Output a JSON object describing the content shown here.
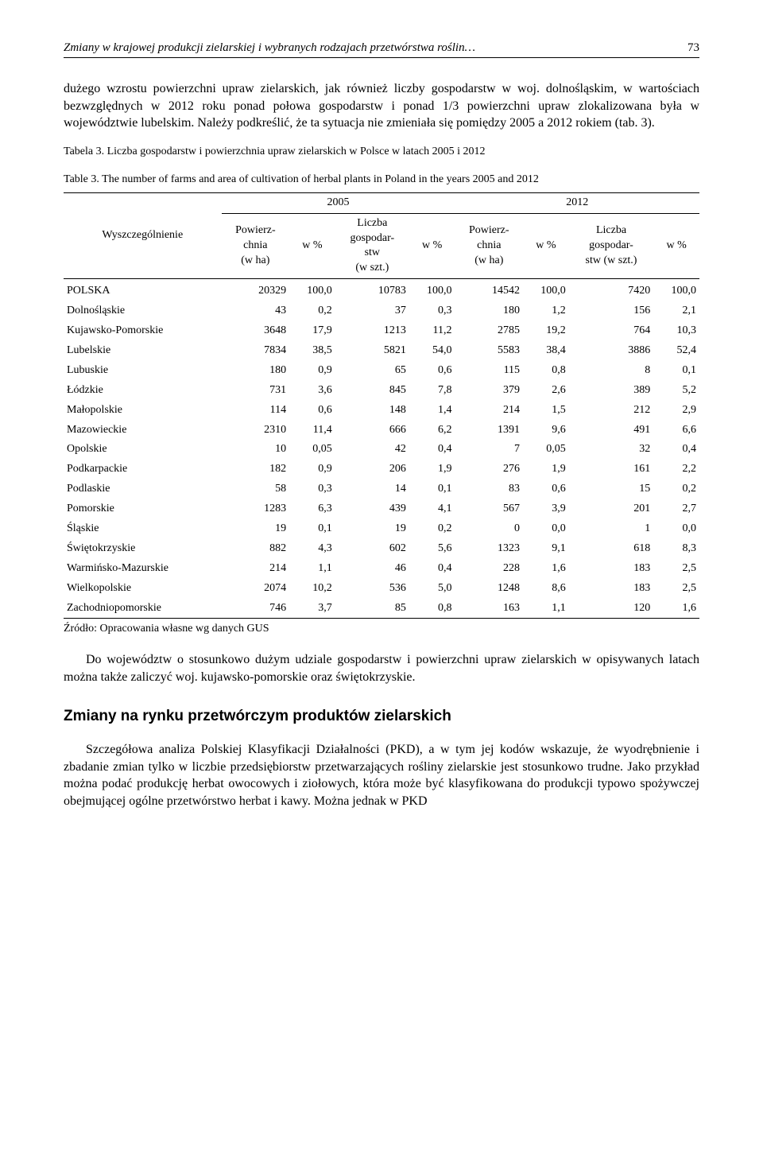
{
  "header": {
    "running_title": "Zmiany w krajowej produkcji zielarskiej i wybranych rodzajach przetwórstwa roślin…",
    "page_number": "73"
  },
  "para_top": "dużego wzrostu powierzchni upraw zielarskich, jak również liczby gospodarstw w woj. dolnośląskim, w wartościach bezwzględnych w 2012 roku ponad połowa gospodarstw i ponad 1/3 powierzchni upraw zlokalizowana była w województwie lubelskim. Należy podkreślić, że ta sytuacja nie zmieniała się pomiędzy 2005 a 2012 rokiem (tab. 3).",
  "table_caption_pl": "Tabela 3. Liczba gospodarstw i powierzchnia upraw zielarskich w Polsce w latach 2005 i 2012",
  "table_caption_en": "Table 3. The number of farms and area of cultivation of herbal plants in Poland in the years 2005 and 2012",
  "table": {
    "col_stub": "Wyszczególnienie",
    "year_a": "2005",
    "year_b": "2012",
    "col_area": "Powierz-\nchnia\n(w ha)",
    "col_pct": "w %",
    "col_farms": "Liczba\ngospodar-\nstw\n(w szt.)",
    "col_farms_b": "Liczba\ngospodar-\nstw (w szt.)",
    "rows": [
      {
        "name": "POLSKA",
        "a_area": "20329",
        "a_area_pct": "100,0",
        "a_farm": "10783",
        "a_farm_pct": "100,0",
        "b_area": "14542",
        "b_area_pct": "100,0",
        "b_farm": "7420",
        "b_farm_pct": "100,0"
      },
      {
        "name": "Dolnośląskie",
        "a_area": "43",
        "a_area_pct": "0,2",
        "a_farm": "37",
        "a_farm_pct": "0,3",
        "b_area": "180",
        "b_area_pct": "1,2",
        "b_farm": "156",
        "b_farm_pct": "2,1"
      },
      {
        "name": "Kujawsko-Pomorskie",
        "a_area": "3648",
        "a_area_pct": "17,9",
        "a_farm": "1213",
        "a_farm_pct": "11,2",
        "b_area": "2785",
        "b_area_pct": "19,2",
        "b_farm": "764",
        "b_farm_pct": "10,3"
      },
      {
        "name": "Lubelskie",
        "a_area": "7834",
        "a_area_pct": "38,5",
        "a_farm": "5821",
        "a_farm_pct": "54,0",
        "b_area": "5583",
        "b_area_pct": "38,4",
        "b_farm": "3886",
        "b_farm_pct": "52,4"
      },
      {
        "name": "Lubuskie",
        "a_area": "180",
        "a_area_pct": "0,9",
        "a_farm": "65",
        "a_farm_pct": "0,6",
        "b_area": "115",
        "b_area_pct": "0,8",
        "b_farm": "8",
        "b_farm_pct": "0,1"
      },
      {
        "name": "Łódzkie",
        "a_area": "731",
        "a_area_pct": "3,6",
        "a_farm": "845",
        "a_farm_pct": "7,8",
        "b_area": "379",
        "b_area_pct": "2,6",
        "b_farm": "389",
        "b_farm_pct": "5,2"
      },
      {
        "name": "Małopolskie",
        "a_area": "114",
        "a_area_pct": "0,6",
        "a_farm": "148",
        "a_farm_pct": "1,4",
        "b_area": "214",
        "b_area_pct": "1,5",
        "b_farm": "212",
        "b_farm_pct": "2,9"
      },
      {
        "name": "Mazowieckie",
        "a_area": "2310",
        "a_area_pct": "11,4",
        "a_farm": "666",
        "a_farm_pct": "6,2",
        "b_area": "1391",
        "b_area_pct": "9,6",
        "b_farm": "491",
        "b_farm_pct": "6,6"
      },
      {
        "name": "Opolskie",
        "a_area": "10",
        "a_area_pct": "0,05",
        "a_farm": "42",
        "a_farm_pct": "0,4",
        "b_area": "7",
        "b_area_pct": "0,05",
        "b_farm": "32",
        "b_farm_pct": "0,4"
      },
      {
        "name": "Podkarpackie",
        "a_area": "182",
        "a_area_pct": "0,9",
        "a_farm": "206",
        "a_farm_pct": "1,9",
        "b_area": "276",
        "b_area_pct": "1,9",
        "b_farm": "161",
        "b_farm_pct": "2,2"
      },
      {
        "name": "Podlaskie",
        "a_area": "58",
        "a_area_pct": "0,3",
        "a_farm": "14",
        "a_farm_pct": "0,1",
        "b_area": "83",
        "b_area_pct": "0,6",
        "b_farm": "15",
        "b_farm_pct": "0,2"
      },
      {
        "name": "Pomorskie",
        "a_area": "1283",
        "a_area_pct": "6,3",
        "a_farm": "439",
        "a_farm_pct": "4,1",
        "b_area": "567",
        "b_area_pct": "3,9",
        "b_farm": "201",
        "b_farm_pct": "2,7"
      },
      {
        "name": "Śląskie",
        "a_area": "19",
        "a_area_pct": "0,1",
        "a_farm": "19",
        "a_farm_pct": "0,2",
        "b_area": "0",
        "b_area_pct": "0,0",
        "b_farm": "1",
        "b_farm_pct": "0,0"
      },
      {
        "name": "Świętokrzyskie",
        "a_area": "882",
        "a_area_pct": "4,3",
        "a_farm": "602",
        "a_farm_pct": "5,6",
        "b_area": "1323",
        "b_area_pct": "9,1",
        "b_farm": "618",
        "b_farm_pct": "8,3"
      },
      {
        "name": "Warmińsko-Mazurskie",
        "a_area": "214",
        "a_area_pct": "1,1",
        "a_farm": "46",
        "a_farm_pct": "0,4",
        "b_area": "228",
        "b_area_pct": "1,6",
        "b_farm": "183",
        "b_farm_pct": "2,5"
      },
      {
        "name": "Wielkopolskie",
        "a_area": "2074",
        "a_area_pct": "10,2",
        "a_farm": "536",
        "a_farm_pct": "5,0",
        "b_area": "1248",
        "b_area_pct": "8,6",
        "b_farm": "183",
        "b_farm_pct": "2,5"
      },
      {
        "name": "Zachodniopomorskie",
        "a_area": "746",
        "a_area_pct": "3,7",
        "a_farm": "85",
        "a_farm_pct": "0,8",
        "b_area": "163",
        "b_area_pct": "1,1",
        "b_farm": "120",
        "b_farm_pct": "1,6"
      }
    ]
  },
  "source_line": "Źródło: Opracowania własne wg danych GUS",
  "para_mid": "Do województw o stosunkowo dużym udziale gospodarstw i powierzchni upraw zielarskich w opisywanych latach można także zaliczyć woj. kujawsko-pomorskie oraz świętokrzyskie.",
  "section_heading": "Zmiany na rynku przetwórczym produktów zielarskich",
  "para_bottom": "Szczegółowa analiza Polskiej Klasyfikacji Działalności (PKD), a w tym jej kodów wskazuje, że wyodrębnienie i zbadanie zmian tylko w liczbie przedsiębiorstw przetwarzających rośliny zielarskie jest stosunkowo trudne. Jako przykład można podać produkcję herbat owocowych i ziołowych, która może być klasyfikowana do produkcji typowo spożywczej obejmującej ogólne przetwórstwo herbat i kawy. Można jednak w PKD"
}
